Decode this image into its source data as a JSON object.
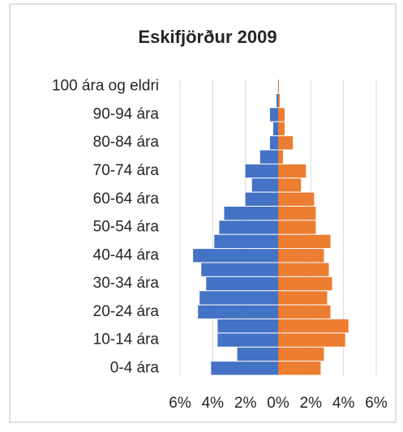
{
  "chart_data": {
    "type": "pyramid",
    "title": "Eskifjörður 2009",
    "categories": [
      "0-4 ára",
      null,
      "10-14 ára",
      null,
      "20-24 ára",
      null,
      "30-34 ára",
      null,
      "40-44 ára",
      null,
      "50-54 ára",
      null,
      "60-64 ára",
      null,
      "70-74 ára",
      null,
      "80-84 ára",
      null,
      "90-94 ára",
      null,
      "100 ára og eldri"
    ],
    "series": [
      {
        "color": "#4472c4",
        "values": [
          -4.1,
          -2.5,
          -3.7,
          -3.7,
          -4.9,
          -4.8,
          -4.4,
          -4.7,
          -5.2,
          -3.9,
          -3.6,
          -3.3,
          -2.0,
          -1.6,
          -2.0,
          -1.1,
          -0.5,
          -0.3,
          -0.5,
          -0.1,
          0
        ]
      },
      {
        "color": "#ed7d31",
        "values": [
          2.6,
          2.8,
          4.1,
          4.3,
          3.2,
          3.0,
          3.3,
          3.1,
          2.8,
          3.2,
          2.3,
          2.3,
          2.2,
          1.4,
          1.7,
          0.3,
          0.9,
          0.4,
          0.4,
          0.1,
          0.05
        ]
      }
    ],
    "xlim": [
      -6,
      6
    ],
    "xticks": [
      {
        "value": -6,
        "label": "6%"
      },
      {
        "value": -4,
        "label": "4%"
      },
      {
        "value": -2,
        "label": "2%"
      },
      {
        "value": 0,
        "label": "0%"
      },
      {
        "value": 2,
        "label": "2%"
      },
      {
        "value": 4,
        "label": "4%"
      },
      {
        "value": 6,
        "label": "6%"
      }
    ],
    "grid": true
  }
}
